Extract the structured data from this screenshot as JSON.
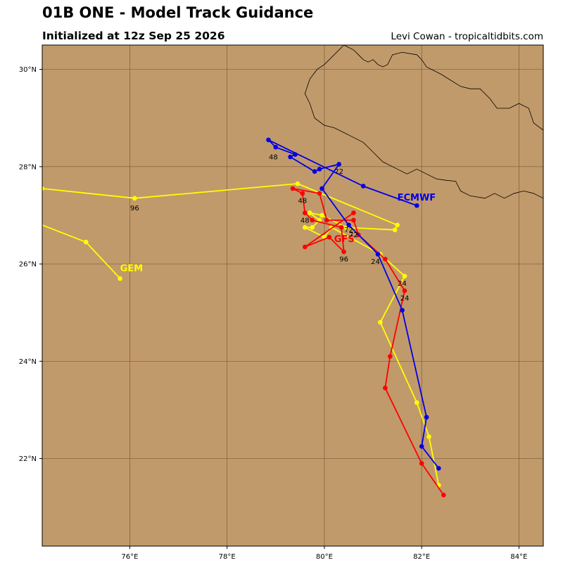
{
  "header": {
    "title": "01B ONE - Model Track Guidance",
    "subtitle": "Initialized at 12z Sep 25 2026",
    "credit": "Levi Cowan - tropicaltidbits.com"
  },
  "map": {
    "extent": {
      "lon": [
        74.2,
        84.5
      ],
      "lat": [
        20.2,
        30.5
      ]
    },
    "land_color": "#c19a6b",
    "grid_color": "#7a5c3a",
    "lon_ticks": [
      {
        "value": 76,
        "label": "76°E"
      },
      {
        "value": 78,
        "label": "78°E"
      },
      {
        "value": 80,
        "label": "80°E"
      },
      {
        "value": 82,
        "label": "82°E"
      },
      {
        "value": 84,
        "label": "84°E"
      }
    ],
    "lat_ticks": [
      {
        "value": 22,
        "label": "22°N"
      },
      {
        "value": 24,
        "label": "24°N"
      },
      {
        "value": 26,
        "label": "26°N"
      },
      {
        "value": 28,
        "label": "28°N"
      },
      {
        "value": 30,
        "label": "30°N"
      }
    ],
    "border": [
      [
        80.4,
        30.5
      ],
      [
        80.6,
        30.4
      ],
      [
        80.8,
        30.2
      ],
      [
        80.9,
        30.15
      ],
      [
        81.0,
        30.2
      ],
      [
        81.1,
        30.1
      ],
      [
        81.2,
        30.05
      ],
      [
        81.3,
        30.1
      ],
      [
        81.4,
        30.3
      ],
      [
        81.6,
        30.35
      ],
      [
        81.9,
        30.3
      ],
      [
        82.0,
        30.2
      ],
      [
        82.1,
        30.05
      ],
      [
        82.4,
        29.9
      ],
      [
        82.8,
        29.65
      ],
      [
        83.0,
        29.6
      ],
      [
        83.2,
        29.6
      ],
      [
        83.4,
        29.4
      ],
      [
        83.55,
        29.2
      ],
      [
        83.8,
        29.2
      ],
      [
        84.0,
        29.3
      ],
      [
        84.2,
        29.2
      ],
      [
        84.3,
        28.9
      ],
      [
        84.5,
        28.75
      ],
      [
        84.5,
        28.7
      ]
    ],
    "coast": [
      [
        84.5,
        27.35
      ],
      [
        84.3,
        27.45
      ],
      [
        84.1,
        27.5
      ],
      [
        83.9,
        27.45
      ],
      [
        83.7,
        27.35
      ],
      [
        83.5,
        27.45
      ],
      [
        83.3,
        27.35
      ],
      [
        83.0,
        27.4
      ],
      [
        82.8,
        27.5
      ],
      [
        82.7,
        27.7
      ],
      [
        82.5,
        27.72
      ],
      [
        82.3,
        27.75
      ],
      [
        82.1,
        27.85
      ],
      [
        81.9,
        27.95
      ],
      [
        81.7,
        27.85
      ],
      [
        81.5,
        27.95
      ],
      [
        81.2,
        28.1
      ],
      [
        81.0,
        28.3
      ],
      [
        80.8,
        28.5
      ],
      [
        80.6,
        28.6
      ],
      [
        80.4,
        28.7
      ],
      [
        80.2,
        28.8
      ],
      [
        80.0,
        28.85
      ],
      [
        79.8,
        29.0
      ],
      [
        79.7,
        29.3
      ],
      [
        79.6,
        29.5
      ],
      [
        79.7,
        29.8
      ],
      [
        79.85,
        30.0
      ],
      [
        80.0,
        30.1
      ],
      [
        80.2,
        30.3
      ],
      [
        80.4,
        30.5
      ]
    ],
    "nepal_west": [
      [
        80.4,
        28.7
      ],
      [
        80.3,
        28.7
      ],
      [
        80.15,
        28.6
      ],
      [
        80.05,
        28.55
      ],
      [
        79.8,
        28.7
      ],
      [
        79.7,
        28.85
      ],
      [
        79.7,
        29.0
      ],
      [
        79.8,
        29.1
      ],
      [
        79.85,
        29.3
      ],
      [
        79.9,
        29.55
      ],
      [
        80.0,
        29.75
      ],
      [
        80.15,
        29.95
      ],
      [
        80.35,
        30.1
      ],
      [
        80.45,
        30.3
      ],
      [
        80.5,
        30.5
      ]
    ]
  },
  "chart_data": {
    "type": "scatter",
    "title": "01B ONE - Model Track Guidance",
    "subtitle": "Initialized at 12z Sep 25 2026",
    "series": [
      {
        "name": "ECMWF",
        "color": "#0000e6",
        "label_position": [
          81.5,
          27.3
        ],
        "points": [
          [
            82.35,
            21.8
          ],
          [
            82.0,
            22.25
          ],
          [
            82.1,
            22.85
          ],
          [
            81.6,
            25.05
          ],
          [
            81.1,
            26.2
          ],
          [
            80.5,
            26.8
          ],
          [
            79.95,
            27.55
          ],
          [
            80.3,
            28.05
          ],
          [
            79.9,
            27.95
          ],
          [
            79.8,
            27.9
          ],
          [
            79.3,
            28.2
          ],
          [
            79.4,
            28.25
          ],
          [
            79.0,
            28.4
          ],
          [
            78.85,
            28.55
          ],
          [
            80.8,
            27.6
          ],
          [
            81.9,
            27.2
          ]
        ],
        "time_labels": [
          {
            "text": "24",
            "lon": 81.05,
            "lat": 26.0
          },
          {
            "text": "48",
            "lon": 78.95,
            "lat": 28.15
          },
          {
            "text": "72",
            "lon": 80.3,
            "lat": 27.85
          }
        ]
      },
      {
        "name": "GFS",
        "color": "#ff0000",
        "label_position": [
          80.2,
          26.45
        ],
        "points": [
          [
            82.45,
            21.25
          ],
          [
            82.0,
            21.9
          ],
          [
            81.25,
            23.45
          ],
          [
            81.35,
            24.1
          ],
          [
            81.65,
            25.45
          ],
          [
            81.25,
            26.1
          ],
          [
            80.7,
            26.6
          ],
          [
            80.6,
            26.9
          ],
          [
            80.05,
            26.9
          ],
          [
            79.9,
            27.45
          ],
          [
            79.35,
            27.55
          ],
          [
            79.55,
            27.45
          ],
          [
            79.6,
            27.05
          ],
          [
            79.75,
            26.9
          ],
          [
            80.35,
            26.75
          ],
          [
            80.4,
            26.25
          ],
          [
            80.1,
            26.55
          ],
          [
            79.6,
            26.35
          ],
          [
            80.6,
            27.05
          ]
        ],
        "time_labels": [
          {
            "text": "24",
            "lon": 81.65,
            "lat": 25.25
          },
          {
            "text": "48",
            "lon": 79.55,
            "lat": 27.25
          },
          {
            "text": "72",
            "lon": 80.5,
            "lat": 26.65
          },
          {
            "text": "96",
            "lon": 80.4,
            "lat": 26.05
          }
        ]
      },
      {
        "name": "GEM",
        "color": "#ffff00",
        "label_position": [
          75.8,
          25.85
        ],
        "points": [
          [
            82.35,
            21.45
          ],
          [
            82.15,
            22.45
          ],
          [
            81.9,
            23.15
          ],
          [
            81.15,
            24.8
          ],
          [
            81.65,
            25.75
          ],
          [
            81.15,
            26.2
          ],
          [
            80.15,
            26.75
          ],
          [
            80.0,
            26.55
          ],
          [
            79.6,
            26.75
          ],
          [
            79.75,
            26.75
          ],
          [
            79.9,
            26.9
          ],
          [
            79.7,
            27.05
          ],
          [
            79.95,
            27.0
          ],
          [
            80.45,
            26.75
          ],
          [
            81.45,
            26.7
          ],
          [
            81.5,
            26.8
          ],
          [
            79.45,
            27.65
          ],
          [
            76.1,
            27.35
          ],
          [
            74.2,
            27.55
          ]
        ],
        "second_track": [
          [
            74.2,
            26.8
          ],
          [
            75.1,
            26.45
          ],
          [
            75.8,
            25.7
          ]
        ],
        "time_labels": [
          {
            "text": "24",
            "lon": 81.6,
            "lat": 25.55
          },
          {
            "text": "48",
            "lon": 79.6,
            "lat": 26.85
          },
          {
            "text": "72",
            "lon": 80.6,
            "lat": 26.55
          },
          {
            "text": "96",
            "lon": 76.1,
            "lat": 27.1
          }
        ]
      }
    ]
  }
}
